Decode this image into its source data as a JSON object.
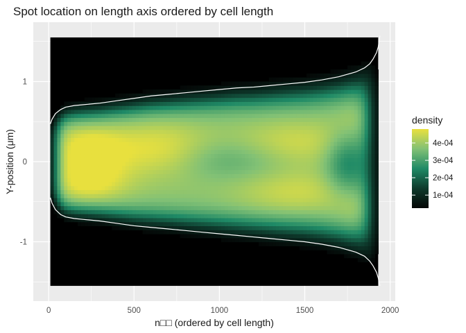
{
  "chart_data": {
    "type": "heatmap",
    "title": "Spot location on length axis ordered by cell length",
    "xlabel": "n□□ (ordered by cell length)",
    "ylabel": "Y-position (μm)",
    "xlim": [
      -90,
      2030
    ],
    "ylim": [
      -1.74,
      1.74
    ],
    "x_ticks": [
      0,
      500,
      1000,
      1500,
      2000
    ],
    "x_tick_labels": [
      "0",
      "500",
      "1000",
      "1500",
      "2000"
    ],
    "y_ticks": [
      -1,
      0,
      1
    ],
    "y_tick_labels": [
      "-1",
      "0",
      "1"
    ],
    "grid": true,
    "legend_placement": "right",
    "legend": {
      "title": "density",
      "breaks": [
        0.0001,
        0.0002,
        0.0003,
        0.0004
      ],
      "labels": [
        "1e-04",
        "2e-04",
        "3e-04",
        "4e-04"
      ],
      "range": [
        2.5e-05,
        0.00048
      ]
    },
    "colors": {
      "low": "#040706",
      "mid_low": "#0e3a2c",
      "mid": "#1f8a66",
      "mid_high": "#82c175",
      "high": "#e8e03e",
      "background_tile": "#000000",
      "outline": "#ffffff",
      "panel_background": "#ebebeb"
    },
    "density_extent": {
      "x": [
        10,
        1930
      ],
      "y": [
        -1.55,
        1.55
      ]
    },
    "outline_upper": {
      "x": [
        10,
        20,
        40,
        70,
        100,
        150,
        200,
        300,
        400,
        500,
        600,
        700,
        800,
        900,
        1000,
        1100,
        1200,
        1300,
        1400,
        1500,
        1600,
        1700,
        1750,
        1800,
        1850,
        1880,
        1900,
        1920,
        1930,
        1935,
        1940
      ],
      "y": [
        0.47,
        0.53,
        0.6,
        0.65,
        0.68,
        0.7,
        0.71,
        0.73,
        0.76,
        0.79,
        0.82,
        0.84,
        0.86,
        0.88,
        0.9,
        0.92,
        0.93,
        0.95,
        0.97,
        0.99,
        1.02,
        1.06,
        1.09,
        1.12,
        1.17,
        1.22,
        1.28,
        1.36,
        1.43,
        1.5,
        1.57
      ]
    },
    "outline_lower": {
      "x": [
        10,
        20,
        40,
        70,
        100,
        150,
        200,
        300,
        400,
        500,
        600,
        700,
        800,
        900,
        1000,
        1100,
        1200,
        1300,
        1400,
        1500,
        1600,
        1700,
        1750,
        1800,
        1850,
        1880,
        1900,
        1920,
        1930,
        1935,
        1940
      ],
      "y": [
        -0.45,
        -0.52,
        -0.6,
        -0.66,
        -0.69,
        -0.71,
        -0.72,
        -0.74,
        -0.77,
        -0.8,
        -0.82,
        -0.84,
        -0.86,
        -0.88,
        -0.9,
        -0.92,
        -0.94,
        -0.96,
        -0.98,
        -1.0,
        -1.03,
        -1.07,
        -1.1,
        -1.13,
        -1.18,
        -1.24,
        -1.3,
        -1.38,
        -1.45,
        -1.5,
        -1.55
      ]
    }
  }
}
